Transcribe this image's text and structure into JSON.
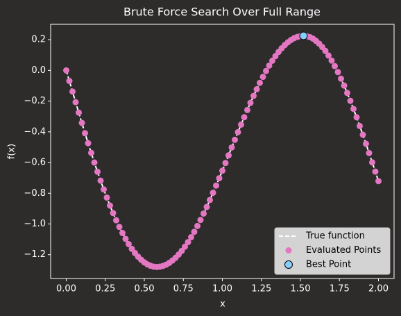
{
  "chart_data": {
    "type": "scatter",
    "title": "Brute Force Search Over Full Range",
    "xlabel": "x",
    "ylabel": "f(x)",
    "xlim": [
      -0.1,
      2.1
    ],
    "ylim": [
      -1.355,
      0.3
    ],
    "xticks": [
      {
        "value": 0,
        "label": "0.00"
      },
      {
        "value": 0.25,
        "label": "0.25"
      },
      {
        "value": 0.5,
        "label": "0.50"
      },
      {
        "value": 0.75,
        "label": "0.75"
      },
      {
        "value": 1,
        "label": "1.00"
      },
      {
        "value": 1.25,
        "label": "1.25"
      },
      {
        "value": 1.5,
        "label": "1.50"
      },
      {
        "value": 1.75,
        "label": "1.75"
      },
      {
        "value": 2,
        "label": "2.00"
      }
    ],
    "yticks": [
      {
        "value": -1.2,
        "label": "−1.2"
      },
      {
        "value": -1.0,
        "label": "−1.0"
      },
      {
        "value": -0.8,
        "label": "−0.8"
      },
      {
        "value": -0.6,
        "label": "−0.6"
      },
      {
        "value": -0.4,
        "label": "−0.4"
      },
      {
        "value": -0.2,
        "label": "−0.2"
      },
      {
        "value": 0,
        "label": "0.0"
      },
      {
        "value": 0.2,
        "label": "0.2"
      }
    ],
    "legend": "lower right",
    "x": [
      0,
      0.02,
      0.04,
      0.06,
      0.08,
      0.1,
      0.12,
      0.14,
      0.16,
      0.18,
      0.2,
      0.22,
      0.24,
      0.26,
      0.28,
      0.3,
      0.32,
      0.34,
      0.36,
      0.38,
      0.4,
      0.42,
      0.44,
      0.46,
      0.48,
      0.5,
      0.52,
      0.54,
      0.56,
      0.58,
      0.6,
      0.62,
      0.64,
      0.66,
      0.68,
      0.7,
      0.72,
      0.74,
      0.76,
      0.78,
      0.8,
      0.82,
      0.84,
      0.86,
      0.88,
      0.9,
      0.92,
      0.94,
      0.96,
      0.98,
      1,
      1.02,
      1.04,
      1.06,
      1.08,
      1.1,
      1.12,
      1.14,
      1.16,
      1.18,
      1.2,
      1.22,
      1.24,
      1.26,
      1.28,
      1.3,
      1.32,
      1.34,
      1.36,
      1.38,
      1.4,
      1.42,
      1.44,
      1.46,
      1.48,
      1.5,
      1.52,
      1.54,
      1.56,
      1.58,
      1.6,
      1.62,
      1.64,
      1.66,
      1.68,
      1.7,
      1.72,
      1.74,
      1.76,
      1.78,
      1.8,
      1.82,
      1.84,
      1.86,
      1.88,
      1.9,
      1.92,
      1.94,
      1.96,
      1.98,
      2
    ],
    "series": [
      {
        "name": "True function",
        "kind": "line",
        "color": "#ffffff",
        "dashed": true,
        "values": [
          0,
          -0.069,
          -0.138,
          -0.207,
          -0.275,
          -0.342,
          -0.409,
          -0.474,
          -0.537,
          -0.6,
          -0.66,
          -0.718,
          -0.775,
          -0.828,
          -0.88,
          -0.929,
          -0.976,
          -1.019,
          -1.059,
          -1.097,
          -1.131,
          -1.162,
          -1.189,
          -1.213,
          -1.233,
          -1.25,
          -1.263,
          -1.272,
          -1.278,
          -1.28,
          -1.278,
          -1.273,
          -1.265,
          -1.253,
          -1.238,
          -1.22,
          -1.199,
          -1.175,
          -1.148,
          -1.118,
          -1.086,
          -1.051,
          -1.013,
          -0.974,
          -0.932,
          -0.889,
          -0.844,
          -0.797,
          -0.75,
          -0.702,
          -0.653,
          -0.603,
          -0.553,
          -0.502,
          -0.452,
          -0.402,
          -0.353,
          -0.305,
          -0.258,
          -0.211,
          -0.166,
          -0.123,
          -0.081,
          -0.042,
          -0.004,
          0.031,
          0.063,
          0.093,
          0.12,
          0.144,
          0.165,
          0.183,
          0.198,
          0.21,
          0.218,
          0.223,
          0.225,
          0.223,
          0.217,
          0.207,
          0.192,
          0.174,
          0.152,
          0.127,
          0.097,
          0.064,
          0.028,
          -0.011,
          -0.054,
          -0.099,
          -0.147,
          -0.198,
          -0.251,
          -0.305,
          -0.362,
          -0.419,
          -0.478,
          -0.538,
          -0.599,
          -0.659,
          -0.721
        ]
      },
      {
        "name": "Evaluated Points",
        "kind": "scatter",
        "color": "#e377c2",
        "values": [
          0,
          -0.069,
          -0.138,
          -0.207,
          -0.275,
          -0.342,
          -0.409,
          -0.474,
          -0.537,
          -0.6,
          -0.66,
          -0.718,
          -0.775,
          -0.828,
          -0.88,
          -0.929,
          -0.976,
          -1.019,
          -1.059,
          -1.097,
          -1.131,
          -1.162,
          -1.189,
          -1.213,
          -1.233,
          -1.25,
          -1.263,
          -1.272,
          -1.278,
          -1.28,
          -1.278,
          -1.273,
          -1.265,
          -1.253,
          -1.238,
          -1.22,
          -1.199,
          -1.175,
          -1.148,
          -1.118,
          -1.086,
          -1.051,
          -1.013,
          -0.974,
          -0.932,
          -0.889,
          -0.844,
          -0.797,
          -0.75,
          -0.702,
          -0.653,
          -0.603,
          -0.553,
          -0.502,
          -0.452,
          -0.402,
          -0.353,
          -0.305,
          -0.258,
          -0.211,
          -0.166,
          -0.123,
          -0.081,
          -0.042,
          -0.004,
          0.031,
          0.063,
          0.093,
          0.12,
          0.144,
          0.165,
          0.183,
          0.198,
          0.21,
          0.218,
          0.223,
          0.225,
          0.223,
          0.217,
          0.207,
          0.192,
          0.174,
          0.152,
          0.127,
          0.097,
          0.064,
          0.028,
          -0.011,
          -0.054,
          -0.099,
          -0.147,
          -0.198,
          -0.251,
          -0.305,
          -0.362,
          -0.419,
          -0.478,
          -0.538,
          -0.599,
          -0.659,
          -0.721
        ]
      },
      {
        "name": "Best Point",
        "kind": "scatter",
        "color": "#87cefa",
        "edgecolor": "#000000",
        "x": [
          1.52
        ],
        "values": [
          0.225
        ]
      }
    ]
  }
}
